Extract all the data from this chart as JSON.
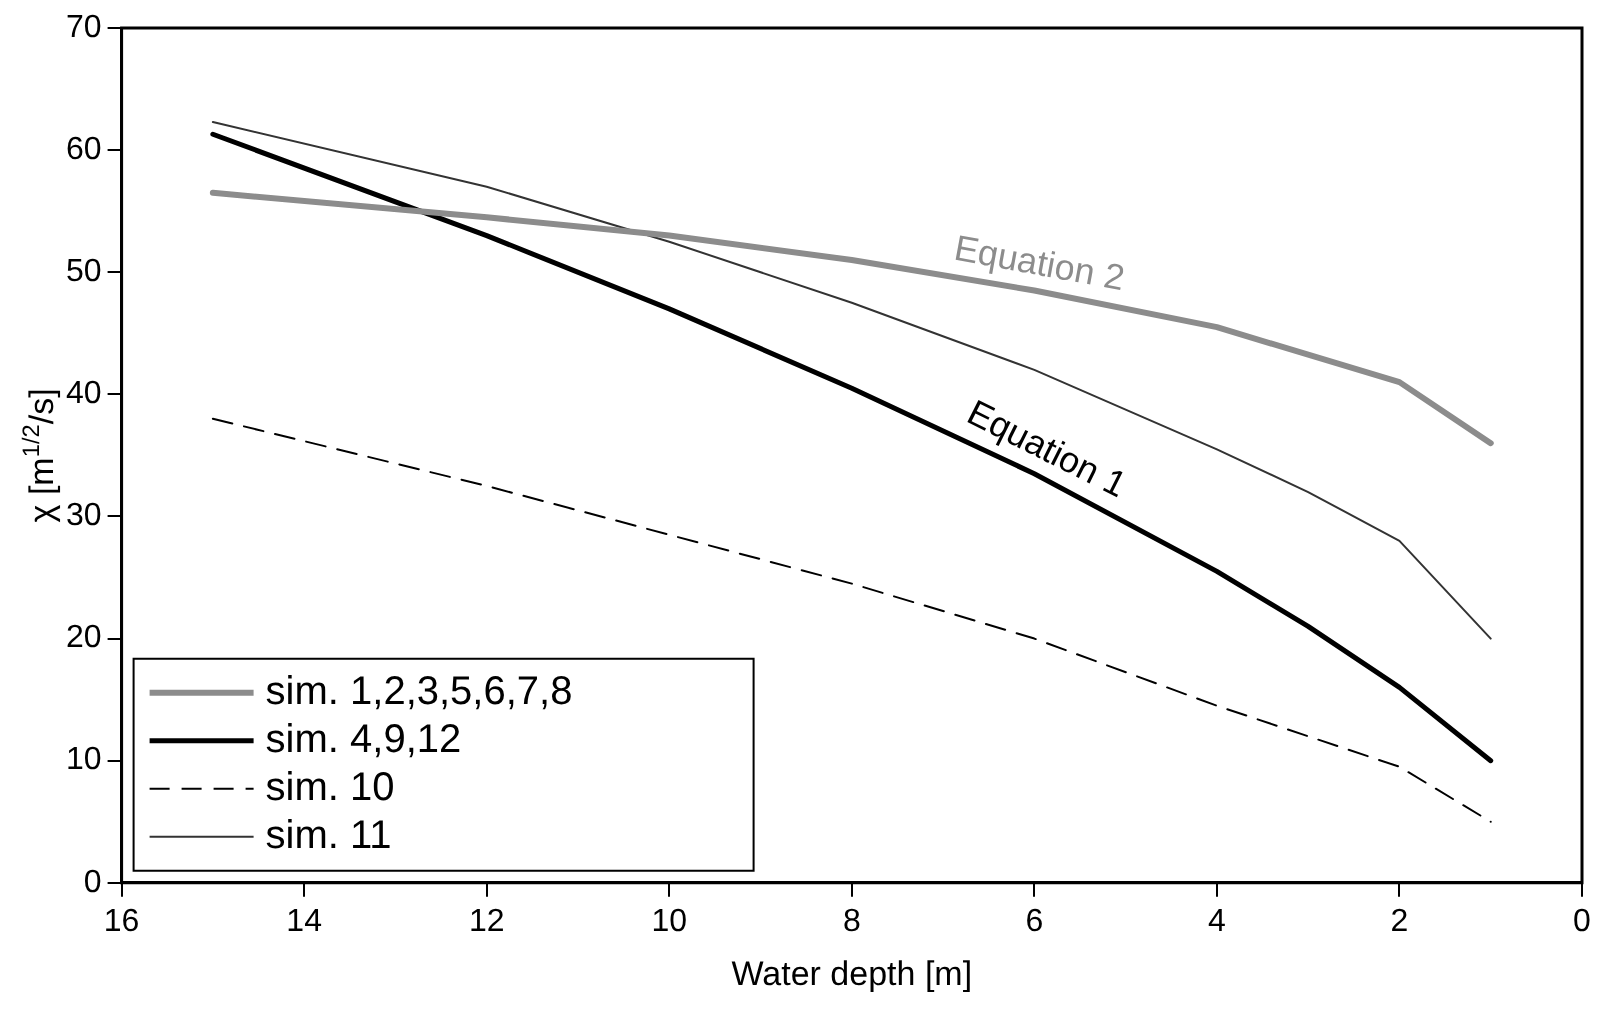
{
  "chart_data": {
    "type": "line",
    "xlabel": "Water depth [m]",
    "ylabel": "χ [m$^{1/2}$/s]",
    "xlim": [
      16,
      0
    ],
    "xticks": [
      16,
      14,
      12,
      10,
      8,
      6,
      4,
      2,
      0
    ],
    "ylim": [
      0,
      70
    ],
    "yticks": [
      0,
      10,
      20,
      30,
      40,
      50,
      60,
      70
    ],
    "grid": false,
    "legend": "bottom left",
    "marker": "none",
    "series": [
      {
        "name": "sim. 1,2,3,5,6,7,8",
        "color": "#8c8c8c",
        "line_style": "solid",
        "x": [
          15,
          12,
          10,
          8,
          6,
          4,
          2,
          1
        ],
        "values": [
          56.5,
          54.5,
          53,
          51,
          48.5,
          45.5,
          41,
          36
        ]
      },
      {
        "name": "sim. 4,9,12",
        "color": "#000000",
        "line_style": "solid",
        "x": [
          15,
          12,
          10,
          8,
          6,
          4,
          3,
          2,
          1
        ],
        "values": [
          61.3,
          53,
          47,
          40.5,
          33.5,
          25.5,
          21,
          16,
          10
        ]
      },
      {
        "name": "sim. 10",
        "color": "#000000",
        "line_style": "dashed",
        "x": [
          15,
          12,
          10,
          8,
          6,
          4,
          2,
          1
        ],
        "values": [
          38,
          32.5,
          28.5,
          24.5,
          20,
          14.5,
          9.5,
          5
        ]
      },
      {
        "name": "sim. 11",
        "color": "#333333",
        "line_style": "solid",
        "x": [
          15,
          12,
          10,
          8,
          6,
          4,
          3,
          2,
          1
        ],
        "values": [
          62.3,
          57,
          52.5,
          47.5,
          42,
          35.5,
          32,
          28,
          20
        ]
      }
    ],
    "annotations": [
      {
        "text": "Equation 2",
        "x": 6,
        "y": 48.5
      },
      {
        "text": "Equation 1",
        "x": 6,
        "y": 33.5
      }
    ]
  }
}
